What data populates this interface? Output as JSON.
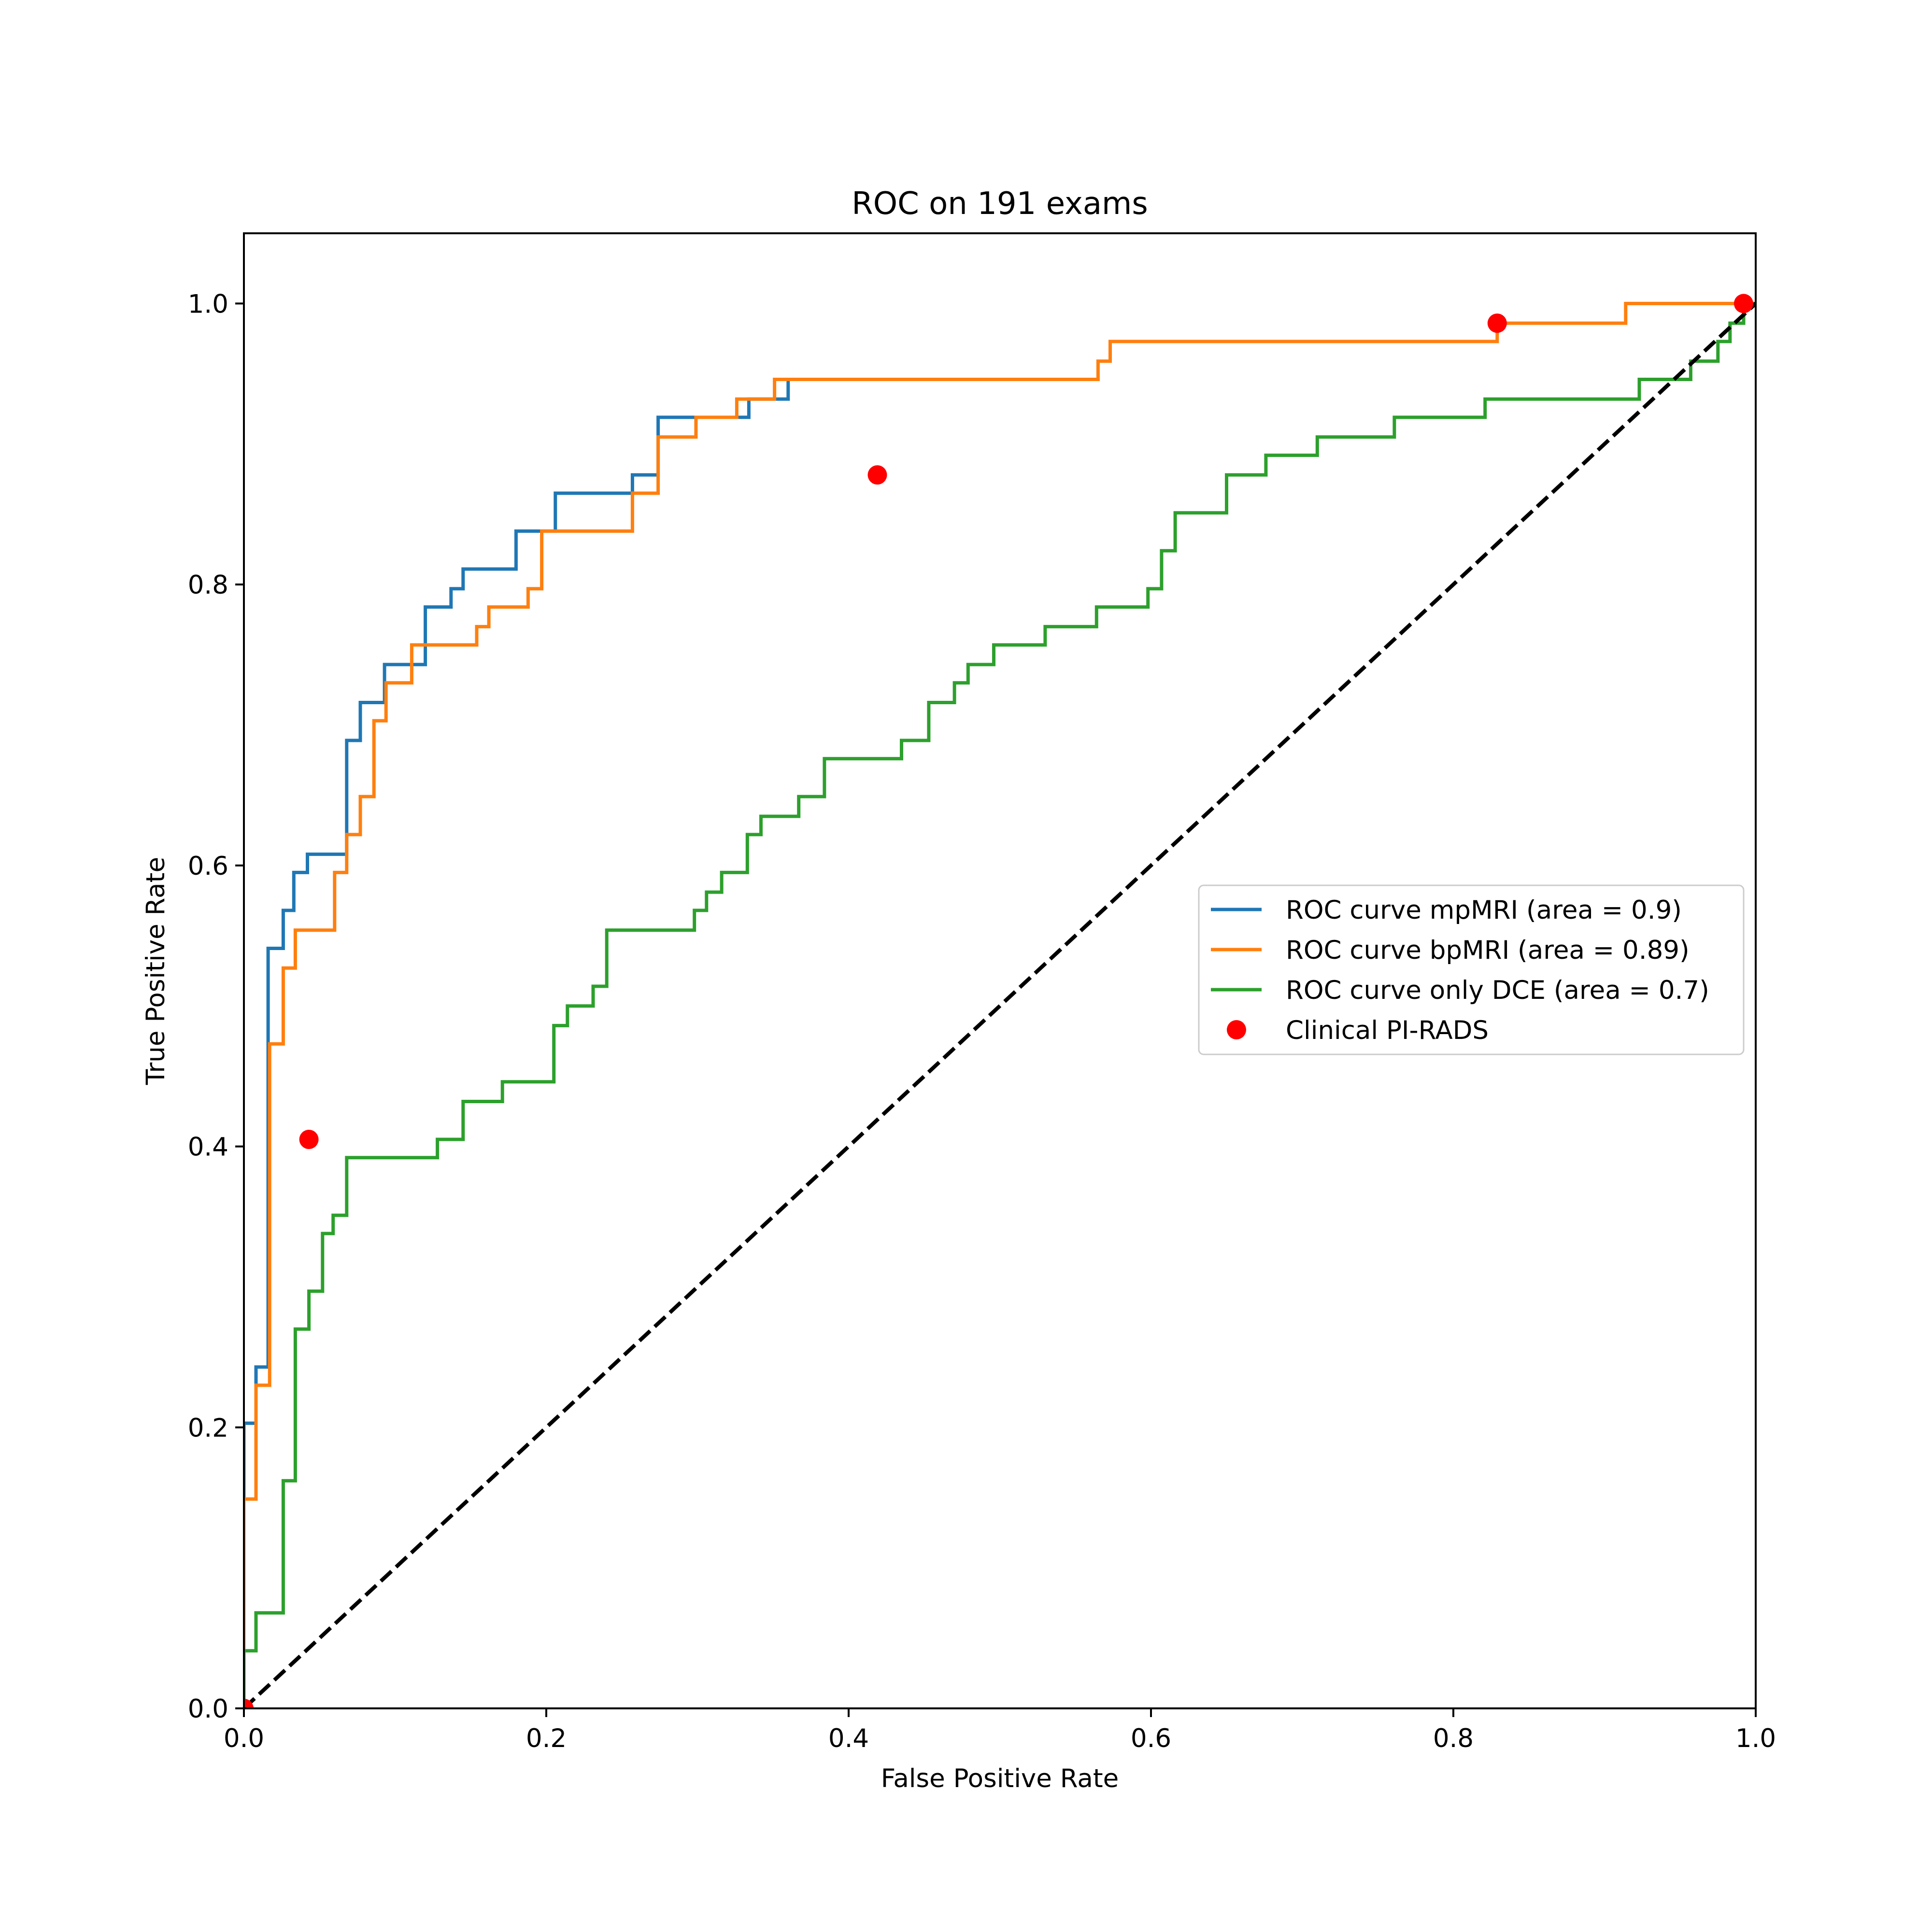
{
  "chart_data": {
    "type": "line",
    "title": "ROC on 191 exams",
    "xlabel": "False Positive Rate",
    "ylabel": "True Positive Rate",
    "xlim": [
      0.0,
      1.0
    ],
    "ylim": [
      0.0,
      1.05
    ],
    "xticks": [
      "0.0",
      "0.2",
      "0.4",
      "0.6",
      "0.8",
      "1.0"
    ],
    "yticks": [
      "0.0",
      "0.2",
      "0.4",
      "0.6",
      "0.8",
      "1.0"
    ],
    "xtick_values": [
      0.0,
      0.2,
      0.4,
      0.6,
      0.8,
      1.0
    ],
    "ytick_values": [
      0.0,
      0.2,
      0.4,
      0.6,
      0.8,
      1.0
    ],
    "grid": false,
    "legend_position": "center-right",
    "series": [
      {
        "name": "ROC curve mpMRI (area = 0.9)",
        "color": "#1f77b4",
        "style": "step",
        "points": [
          [
            0.0,
            0.0
          ],
          [
            0.0,
            0.203
          ],
          [
            0.008,
            0.203
          ],
          [
            0.008,
            0.243
          ],
          [
            0.016,
            0.243
          ],
          [
            0.016,
            0.541
          ],
          [
            0.026,
            0.541
          ],
          [
            0.026,
            0.568
          ],
          [
            0.033,
            0.568
          ],
          [
            0.033,
            0.595
          ],
          [
            0.042,
            0.595
          ],
          [
            0.042,
            0.608
          ],
          [
            0.068,
            0.608
          ],
          [
            0.068,
            0.689
          ],
          [
            0.077,
            0.689
          ],
          [
            0.077,
            0.716
          ],
          [
            0.093,
            0.716
          ],
          [
            0.093,
            0.743
          ],
          [
            0.12,
            0.743
          ],
          [
            0.12,
            0.784
          ],
          [
            0.137,
            0.784
          ],
          [
            0.137,
            0.797
          ],
          [
            0.145,
            0.797
          ],
          [
            0.145,
            0.811
          ],
          [
            0.18,
            0.811
          ],
          [
            0.18,
            0.838
          ],
          [
            0.206,
            0.838
          ],
          [
            0.206,
            0.865
          ],
          [
            0.257,
            0.865
          ],
          [
            0.257,
            0.878
          ],
          [
            0.274,
            0.878
          ],
          [
            0.274,
            0.919
          ],
          [
            0.327,
            0.919
          ],
          [
            0.327,
            0.919
          ],
          [
            0.334,
            0.919
          ],
          [
            0.334,
            0.932
          ],
          [
            0.36,
            0.932
          ],
          [
            0.36,
            0.946
          ]
        ]
      },
      {
        "name": "ROC curve bpMRI (area = 0.89)",
        "color": "#ff7f0e",
        "style": "step",
        "points": [
          [
            0.0,
            0.0
          ],
          [
            0.0,
            0.149
          ],
          [
            0.008,
            0.149
          ],
          [
            0.008,
            0.23
          ],
          [
            0.017,
            0.23
          ],
          [
            0.017,
            0.473
          ],
          [
            0.026,
            0.473
          ],
          [
            0.026,
            0.527
          ],
          [
            0.034,
            0.527
          ],
          [
            0.034,
            0.554
          ],
          [
            0.06,
            0.554
          ],
          [
            0.06,
            0.595
          ],
          [
            0.068,
            0.595
          ],
          [
            0.068,
            0.622
          ],
          [
            0.077,
            0.622
          ],
          [
            0.077,
            0.649
          ],
          [
            0.086,
            0.649
          ],
          [
            0.086,
            0.703
          ],
          [
            0.094,
            0.703
          ],
          [
            0.094,
            0.73
          ],
          [
            0.111,
            0.73
          ],
          [
            0.111,
            0.757
          ],
          [
            0.154,
            0.757
          ],
          [
            0.154,
            0.77
          ],
          [
            0.162,
            0.77
          ],
          [
            0.162,
            0.784
          ],
          [
            0.188,
            0.784
          ],
          [
            0.188,
            0.797
          ],
          [
            0.197,
            0.797
          ],
          [
            0.197,
            0.838
          ],
          [
            0.257,
            0.838
          ],
          [
            0.257,
            0.865
          ],
          [
            0.274,
            0.865
          ],
          [
            0.274,
            0.905
          ],
          [
            0.299,
            0.905
          ],
          [
            0.299,
            0.919
          ],
          [
            0.326,
            0.919
          ],
          [
            0.326,
            0.932
          ],
          [
            0.351,
            0.932
          ],
          [
            0.351,
            0.946
          ],
          [
            0.565,
            0.946
          ],
          [
            0.565,
            0.959
          ],
          [
            0.573,
            0.959
          ],
          [
            0.573,
            0.973
          ],
          [
            0.829,
            0.973
          ],
          [
            0.829,
            0.986
          ],
          [
            0.914,
            0.986
          ],
          [
            0.914,
            1.0
          ],
          [
            0.992,
            1.0
          ],
          [
            1.0,
            1.0
          ]
        ]
      },
      {
        "name": "ROC curve only DCE (area = 0.7)",
        "color": "#2ca02c",
        "style": "step",
        "points": [
          [
            0.0,
            0.0
          ],
          [
            0.0,
            0.041
          ],
          [
            0.008,
            0.041
          ],
          [
            0.008,
            0.068
          ],
          [
            0.026,
            0.068
          ],
          [
            0.026,
            0.162
          ],
          [
            0.034,
            0.162
          ],
          [
            0.034,
            0.27
          ],
          [
            0.043,
            0.27
          ],
          [
            0.043,
            0.297
          ],
          [
            0.052,
            0.297
          ],
          [
            0.052,
            0.338
          ],
          [
            0.059,
            0.338
          ],
          [
            0.059,
            0.351
          ],
          [
            0.068,
            0.351
          ],
          [
            0.068,
            0.392
          ],
          [
            0.128,
            0.392
          ],
          [
            0.128,
            0.405
          ],
          [
            0.145,
            0.405
          ],
          [
            0.145,
            0.432
          ],
          [
            0.171,
            0.432
          ],
          [
            0.171,
            0.446
          ],
          [
            0.205,
            0.446
          ],
          [
            0.205,
            0.486
          ],
          [
            0.214,
            0.486
          ],
          [
            0.214,
            0.5
          ],
          [
            0.231,
            0.5
          ],
          [
            0.231,
            0.514
          ],
          [
            0.24,
            0.514
          ],
          [
            0.24,
            0.554
          ],
          [
            0.298,
            0.554
          ],
          [
            0.298,
            0.568
          ],
          [
            0.306,
            0.568
          ],
          [
            0.306,
            0.581
          ],
          [
            0.316,
            0.581
          ],
          [
            0.316,
            0.595
          ],
          [
            0.333,
            0.595
          ],
          [
            0.333,
            0.622
          ],
          [
            0.342,
            0.622
          ],
          [
            0.342,
            0.635
          ],
          [
            0.367,
            0.635
          ],
          [
            0.367,
            0.649
          ],
          [
            0.384,
            0.649
          ],
          [
            0.384,
            0.676
          ],
          [
            0.435,
            0.676
          ],
          [
            0.435,
            0.689
          ],
          [
            0.453,
            0.689
          ],
          [
            0.453,
            0.716
          ],
          [
            0.47,
            0.716
          ],
          [
            0.47,
            0.73
          ],
          [
            0.479,
            0.73
          ],
          [
            0.479,
            0.743
          ],
          [
            0.496,
            0.743
          ],
          [
            0.496,
            0.757
          ],
          [
            0.53,
            0.757
          ],
          [
            0.53,
            0.77
          ],
          [
            0.564,
            0.77
          ],
          [
            0.564,
            0.784
          ],
          [
            0.598,
            0.784
          ],
          [
            0.598,
            0.797
          ],
          [
            0.607,
            0.797
          ],
          [
            0.607,
            0.824
          ],
          [
            0.616,
            0.824
          ],
          [
            0.616,
            0.851
          ],
          [
            0.65,
            0.851
          ],
          [
            0.65,
            0.878
          ],
          [
            0.676,
            0.878
          ],
          [
            0.676,
            0.892
          ],
          [
            0.71,
            0.892
          ],
          [
            0.71,
            0.905
          ],
          [
            0.761,
            0.905
          ],
          [
            0.761,
            0.919
          ],
          [
            0.821,
            0.919
          ],
          [
            0.821,
            0.932
          ],
          [
            0.923,
            0.932
          ],
          [
            0.923,
            0.946
          ],
          [
            0.957,
            0.946
          ],
          [
            0.957,
            0.959
          ],
          [
            0.975,
            0.959
          ],
          [
            0.975,
            0.973
          ],
          [
            0.983,
            0.973
          ],
          [
            0.983,
            0.986
          ],
          [
            0.992,
            0.986
          ],
          [
            0.992,
            1.0
          ],
          [
            1.0,
            1.0
          ]
        ]
      },
      {
        "name": "",
        "color": "#000000",
        "style": "dashed",
        "points": [
          [
            0.0,
            0.0
          ],
          [
            1.0,
            1.0
          ]
        ]
      },
      {
        "name": "Clinical PI-RADS",
        "color": "#ff0000",
        "style": "markers",
        "points": [
          [
            0.0,
            0.0
          ],
          [
            0.043,
            0.405
          ],
          [
            0.419,
            0.878
          ],
          [
            0.829,
            0.986
          ],
          [
            0.992,
            1.0
          ]
        ]
      }
    ]
  }
}
